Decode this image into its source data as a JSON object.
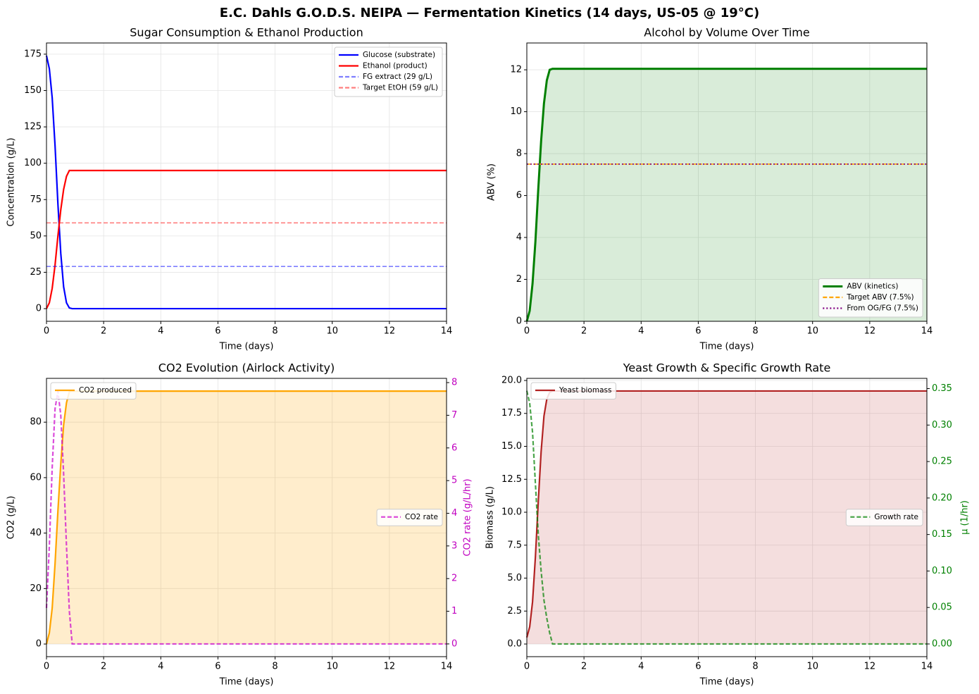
{
  "title": "E.C. Dahls G.O.D.S. NEIPA — Fermentation Kinetics (14 days, US-05 @ 19°C)",
  "chart_data": [
    {
      "type": "line",
      "title": "Sugar Consumption & Ethanol Production",
      "xlabel": "Time (days)",
      "ylabel": "Concentration (g/L)",
      "x": [
        0,
        0.1,
        0.2,
        0.3,
        0.4,
        0.5,
        0.6,
        0.7,
        0.8,
        0.9,
        1,
        2,
        3,
        4,
        5,
        6,
        7,
        8,
        9,
        10,
        11,
        12,
        13,
        14
      ],
      "series": [
        {
          "name": "Glucose (substrate)",
          "color": "#0000ff",
          "style": "solid",
          "values": [
            174,
            165,
            145,
            112,
            72,
            38,
            15,
            4,
            0.5,
            0,
            0,
            0,
            0,
            0,
            0,
            0,
            0,
            0,
            0,
            0,
            0,
            0,
            0,
            0
          ]
        },
        {
          "name": "Ethanol (product)",
          "color": "#ff0000",
          "style": "solid",
          "values": [
            0,
            4,
            14,
            30,
            50,
            68,
            82,
            91,
            95,
            95,
            95,
            95,
            95,
            95,
            95,
            95,
            95,
            95,
            95,
            95,
            95,
            95,
            95,
            95
          ]
        }
      ],
      "hlines": [
        {
          "name": "FG extract (29 g/L)",
          "color": "#0000ff",
          "style": "dashed",
          "alpha": 0.5,
          "value": 29
        },
        {
          "name": "Target EtOH (59 g/L)",
          "color": "#ff0000",
          "style": "dashed",
          "alpha": 0.5,
          "value": 59
        }
      ],
      "xlim": [
        0,
        14
      ],
      "xticks": [
        0,
        2,
        4,
        6,
        8,
        10,
        12,
        14
      ],
      "ylim": [
        -8.7,
        182.7
      ],
      "yticks": [
        0,
        25,
        50,
        75,
        100,
        125,
        150,
        175
      ],
      "grid": true,
      "legend": "upper right"
    },
    {
      "type": "line",
      "title": "Alcohol by Volume Over Time",
      "xlabel": "Time (days)",
      "ylabel": "ABV (%)",
      "x": [
        0,
        0.1,
        0.2,
        0.3,
        0.4,
        0.5,
        0.6,
        0.7,
        0.8,
        0.9,
        1,
        2,
        3,
        4,
        5,
        6,
        7,
        8,
        9,
        10,
        11,
        12,
        13,
        14
      ],
      "series": [
        {
          "name": "ABV (kinetics)",
          "color": "#008000",
          "style": "solid",
          "width": 3,
          "fill": true,
          "fill_alpha": 0.15,
          "values": [
            0,
            0.5,
            1.8,
            3.8,
            6.3,
            8.6,
            10.4,
            11.5,
            12.0,
            12.05,
            12.05,
            12.05,
            12.05,
            12.05,
            12.05,
            12.05,
            12.05,
            12.05,
            12.05,
            12.05,
            12.05,
            12.05,
            12.05,
            12.05
          ]
        }
      ],
      "hlines": [
        {
          "name": "Target ABV (7.5%)",
          "color": "#ffa500",
          "style": "dashed",
          "alpha": 1,
          "value": 7.5
        },
        {
          "name": "From OG/FG (7.5%)",
          "color": "#800080",
          "style": "dotted",
          "alpha": 1,
          "value": 7.5
        }
      ],
      "xlim": [
        0,
        14
      ],
      "xticks": [
        0,
        2,
        4,
        6,
        8,
        10,
        12,
        14
      ],
      "ylim": [
        0,
        13.28
      ],
      "yticks": [
        0,
        2,
        4,
        6,
        8,
        10,
        12
      ],
      "grid": true,
      "legend": "lower right"
    },
    {
      "type": "line",
      "title": "CO2 Evolution (Airlock Activity)",
      "xlabel": "Time (days)",
      "ylabel": "CO2 (g/L)",
      "y2label": "CO2 rate (g/L/hr)",
      "y2color": "#c000c0",
      "x": [
        0,
        0.1,
        0.2,
        0.3,
        0.4,
        0.5,
        0.6,
        0.7,
        0.8,
        0.9,
        1,
        2,
        3,
        4,
        5,
        6,
        7,
        8,
        9,
        10,
        11,
        12,
        13,
        14
      ],
      "series": [
        {
          "name": "CO2 produced",
          "color": "#ffa500",
          "style": "solid",
          "fill": true,
          "fill_alpha": 0.2,
          "values": [
            0,
            4,
            13,
            29,
            48,
            65,
            79,
            87,
            91,
            91.2,
            91.2,
            91.2,
            91.2,
            91.2,
            91.2,
            91.2,
            91.2,
            91.2,
            91.2,
            91.2,
            91.2,
            91.2,
            91.2,
            91.2
          ]
        },
        {
          "name": "CO2 rate",
          "color": "#cc00cc",
          "style": "dashed",
          "alpha": 0.7,
          "axis": "y2",
          "values": [
            1.1,
            3.0,
            5.4,
            7.2,
            7.74,
            7.0,
            5.2,
            3.0,
            1.0,
            0,
            0,
            0,
            0,
            0,
            0,
            0,
            0,
            0,
            0,
            0,
            0,
            0,
            0,
            0
          ]
        }
      ],
      "xlim": [
        0,
        14
      ],
      "xticks": [
        0,
        2,
        4,
        6,
        8,
        10,
        12,
        14
      ],
      "ylim": [
        -4.56,
        95.8
      ],
      "yticks": [
        0,
        20,
        40,
        60,
        80
      ],
      "y2lim": [
        -0.39,
        8.13
      ],
      "y2ticks": [
        0,
        1,
        2,
        3,
        4,
        5,
        6,
        7,
        8
      ],
      "grid": true,
      "legend": "upper left",
      "legend_y2": "center right"
    },
    {
      "type": "line",
      "title": "Yeast Growth & Specific Growth Rate",
      "xlabel": "Time (days)",
      "ylabel": "Biomass (g/L)",
      "y2label": "μ (1/hr)",
      "y2color": "#008000",
      "x": [
        0,
        0.1,
        0.2,
        0.3,
        0.4,
        0.5,
        0.6,
        0.7,
        0.8,
        0.9,
        1,
        2,
        3,
        4,
        5,
        6,
        7,
        8,
        9,
        10,
        11,
        12,
        13,
        14
      ],
      "series": [
        {
          "name": "Yeast biomass",
          "color": "#b22222",
          "style": "solid",
          "fill": true,
          "fill_alpha": 0.15,
          "values": [
            0.5,
            1.3,
            3.2,
            6.6,
            10.8,
            14.6,
            17.3,
            18.6,
            19.1,
            19.2,
            19.2,
            19.2,
            19.2,
            19.2,
            19.2,
            19.2,
            19.2,
            19.2,
            19.2,
            19.2,
            19.2,
            19.2,
            19.2,
            19.2
          ]
        },
        {
          "name": "Growth rate",
          "color": "#008000",
          "style": "dashed",
          "alpha": 0.7,
          "axis": "y2",
          "values": [
            0.347,
            0.33,
            0.29,
            0.22,
            0.15,
            0.1,
            0.06,
            0.035,
            0.015,
            0,
            0,
            0,
            0,
            0,
            0,
            0,
            0,
            0,
            0,
            0,
            0,
            0,
            0,
            0
          ]
        }
      ],
      "xlim": [
        0,
        14
      ],
      "xticks": [
        0,
        2,
        4,
        6,
        8,
        10,
        12,
        14
      ],
      "ylim": [
        -0.96,
        20.16
      ],
      "yticks": [
        {
          "value": 0,
          "label": "0.0"
        },
        2.5,
        {
          "value": 5,
          "label": "5.0"
        },
        7.5,
        {
          "value": 10,
          "label": "10.0"
        },
        12.5,
        {
          "value": 15,
          "label": "15.0"
        },
        17.5,
        {
          "value": 20,
          "label": "20.0"
        }
      ],
      "y2lim": [
        -0.0174,
        0.364
      ],
      "y2ticks": [
        {
          "value": 0,
          "label": "0.00"
        },
        0.05,
        {
          "value": 0.1,
          "label": "0.10"
        },
        0.15,
        {
          "value": 0.2,
          "label": "0.20"
        },
        0.25,
        {
          "value": 0.3,
          "label": "0.30"
        },
        0.35
      ],
      "grid": true,
      "legend": "upper left",
      "legend_y2": "center right"
    }
  ]
}
